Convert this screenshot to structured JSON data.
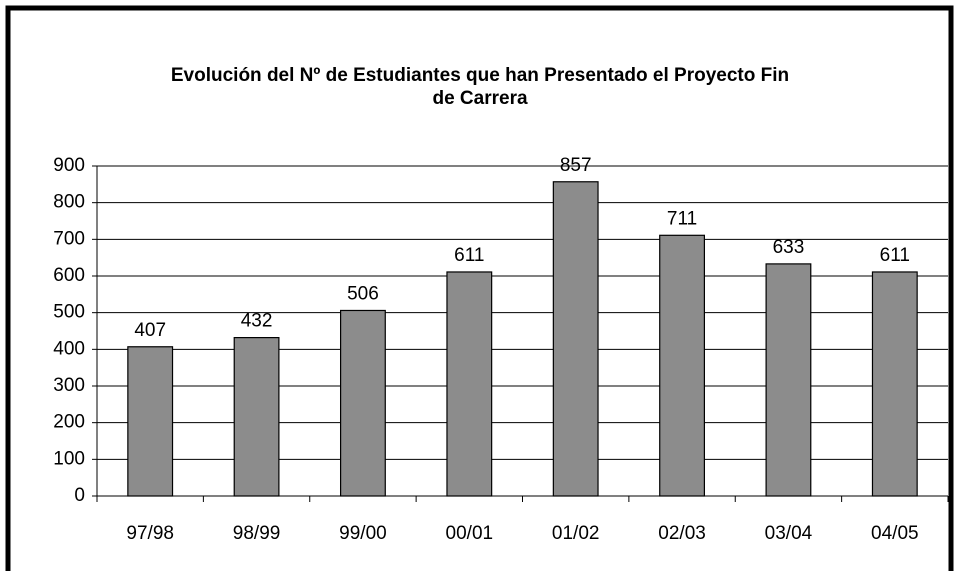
{
  "chart_data": {
    "type": "bar",
    "title": "Evolución del Nº de Estudiantes que han Presentado el Proyecto Fin de Carrera",
    "categories": [
      "97/98",
      "98/99",
      "99/00",
      "00/01",
      "01/02",
      "02/03",
      "03/04",
      "04/05"
    ],
    "values": [
      407,
      432,
      506,
      611,
      857,
      711,
      633,
      611
    ],
    "color": "#8c8c8c",
    "ylim": [
      0,
      900
    ],
    "yticks": [
      0,
      100,
      200,
      300,
      400,
      500,
      600,
      700,
      800,
      900
    ],
    "grid": true
  }
}
